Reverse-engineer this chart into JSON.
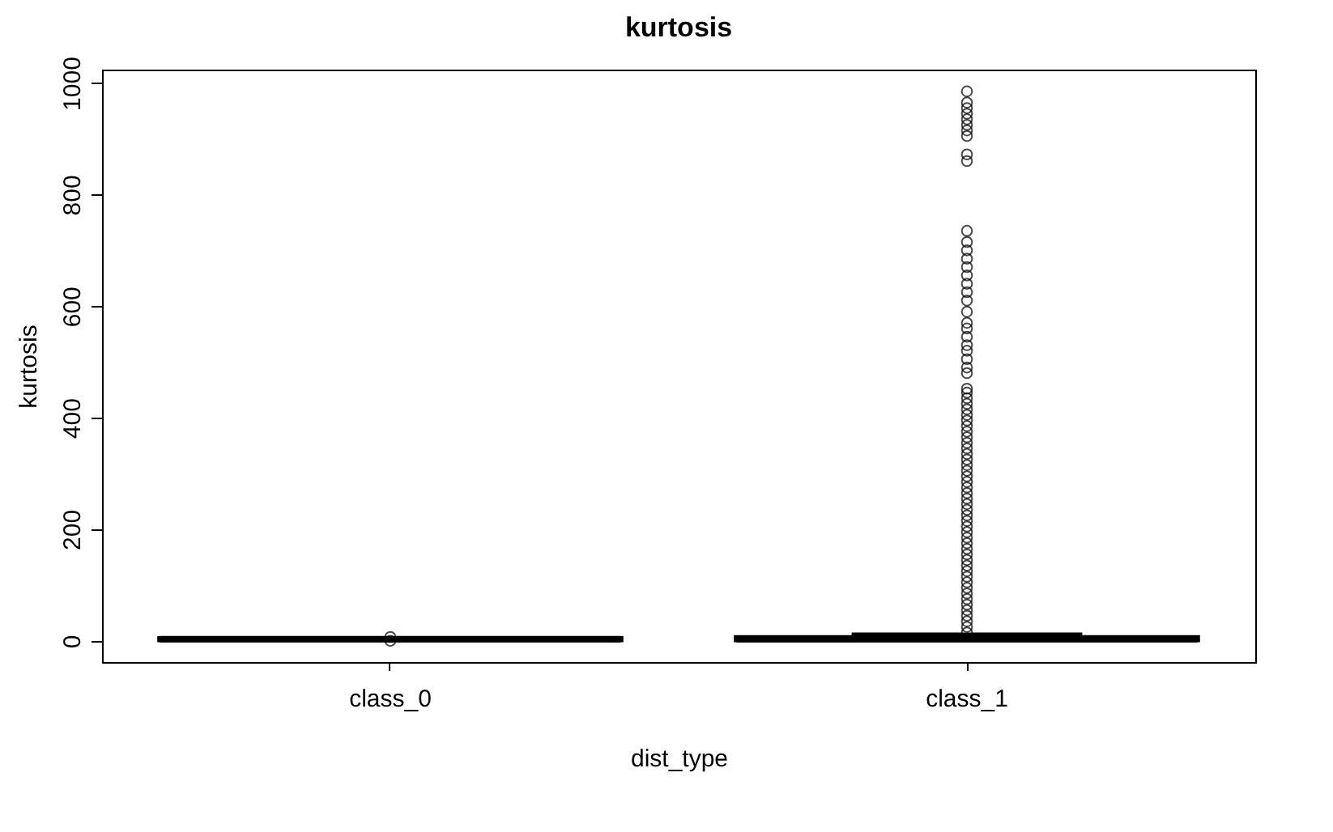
{
  "chart_data": {
    "type": "box",
    "title": "kurtosis",
    "xlabel": "dist_type",
    "ylabel": "kurtosis",
    "categories": [
      "class_0",
      "class_1"
    ],
    "boxes": [
      {
        "low": 1,
        "q1": 2,
        "median": 3,
        "q3": 4,
        "high": 5,
        "outliers": [
          0,
          7
        ]
      },
      {
        "low": 1,
        "q1": 2,
        "median": 3,
        "q3": 6,
        "high": 12,
        "outliers": [
          15,
          25,
          35,
          45,
          55,
          65,
          75,
          85,
          95,
          105,
          115,
          125,
          135,
          145,
          155,
          165,
          175,
          185,
          195,
          205,
          215,
          225,
          235,
          245,
          255,
          265,
          275,
          285,
          295,
          305,
          315,
          325,
          335,
          345,
          355,
          365,
          375,
          385,
          395,
          405,
          415,
          425,
          435,
          445,
          452,
          480,
          490,
          505,
          520,
          530,
          545,
          560,
          570,
          590,
          610,
          625,
          640,
          655,
          670,
          685,
          700,
          715,
          735,
          860,
          872,
          905,
          915,
          925,
          935,
          945,
          955,
          965,
          985
        ]
      }
    ],
    "ylim": [
      -38,
      1024
    ],
    "yticks": [
      0,
      200,
      400,
      600,
      800,
      1000
    ]
  }
}
